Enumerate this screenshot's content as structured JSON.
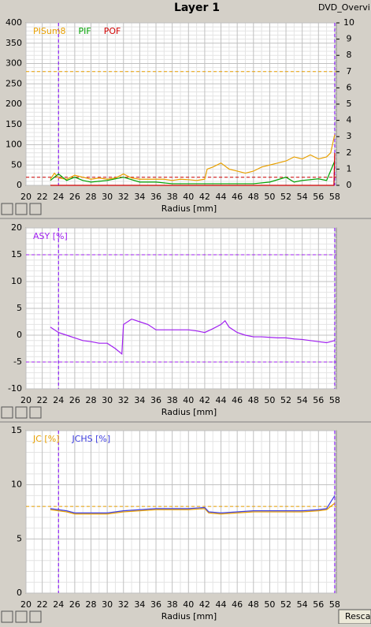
{
  "header": {
    "title": "Layer 1",
    "tab": "DVD_Overvi"
  },
  "button": "Rescal",
  "chart_data": [
    {
      "type": "line",
      "xlabel": "Radius [mm]",
      "xlim": [
        20,
        58.2
      ],
      "xticks": [
        20,
        22,
        24,
        26,
        28,
        30,
        32,
        34,
        36,
        38,
        40,
        42,
        44,
        46,
        48,
        50,
        52,
        54,
        56,
        58
      ],
      "ylim": [
        0,
        400
      ],
      "yticks": [
        0,
        50,
        100,
        150,
        200,
        250,
        300,
        350,
        400
      ],
      "y2lim": [
        0,
        10
      ],
      "y2ticks": [
        0,
        1,
        2,
        3,
        4,
        5,
        6,
        7,
        8,
        9,
        10
      ],
      "grid": true,
      "hlines": [
        {
          "value": 280,
          "color": "#e8a000"
        },
        {
          "value": 20,
          "color": "#d00000"
        }
      ],
      "vlines": [
        24,
        58
      ],
      "vline_color": "#8000ff",
      "series": [
        {
          "name": "PISum8",
          "color": "#e8a000",
          "x": [
            23,
            23.5,
            24,
            25,
            26,
            27,
            28,
            29,
            30,
            31,
            32,
            33,
            34,
            35,
            36,
            37,
            38,
            39,
            40,
            41,
            42,
            42.3,
            43,
            44,
            45,
            46,
            47,
            48,
            49,
            50,
            51,
            52,
            53,
            54,
            55,
            56,
            57,
            57.5,
            58
          ],
          "values": [
            15,
            30,
            18,
            15,
            25,
            20,
            15,
            18,
            15,
            18,
            28,
            18,
            15,
            15,
            15,
            15,
            12,
            15,
            14,
            12,
            15,
            40,
            45,
            55,
            40,
            35,
            30,
            35,
            45,
            50,
            55,
            60,
            70,
            65,
            75,
            65,
            70,
            80,
            125
          ]
        },
        {
          "name": "PIF",
          "color": "#00a000",
          "axis": "y2",
          "x": [
            23,
            24,
            25,
            26,
            27,
            28,
            30,
            32,
            34,
            36,
            38,
            40,
            42,
            44,
            46,
            48,
            50,
            52,
            53,
            54,
            56,
            57,
            58
          ],
          "values": [
            0.3,
            0.7,
            0.3,
            0.5,
            0.3,
            0.2,
            0.3,
            0.5,
            0.2,
            0.2,
            0.1,
            0.1,
            0.1,
            0.1,
            0.1,
            0.1,
            0.2,
            0.5,
            0.2,
            0.3,
            0.4,
            0.3,
            1.5
          ]
        },
        {
          "name": "POF",
          "color": "#d00000",
          "axis": "y2",
          "x": [
            23,
            40,
            57.9,
            58
          ],
          "values": [
            0,
            0,
            0,
            2
          ]
        }
      ]
    },
    {
      "type": "line",
      "xlabel": "Radius [mm]",
      "xlim": [
        20,
        58.2
      ],
      "xticks": [
        20,
        22,
        24,
        26,
        28,
        30,
        32,
        34,
        36,
        38,
        40,
        42,
        44,
        46,
        48,
        50,
        52,
        54,
        56,
        58
      ],
      "ylim": [
        -10,
        20
      ],
      "yticks": [
        -10,
        -5,
        0,
        5,
        10,
        15,
        20
      ],
      "grid": true,
      "hlines": [
        {
          "value": 15,
          "color": "#a020f0"
        },
        {
          "value": -5,
          "color": "#a020f0"
        }
      ],
      "vlines": [
        24,
        58
      ],
      "vline_color": "#8000ff",
      "series": [
        {
          "name": "ASY [%]",
          "color": "#a020f0",
          "x": [
            23,
            24,
            25,
            26,
            27,
            28,
            29,
            30,
            31,
            31.8,
            32,
            33,
            34,
            35,
            36,
            37,
            38,
            39,
            40,
            41,
            42,
            43,
            44,
            44.5,
            45,
            46,
            47,
            48,
            49,
            50,
            51,
            52,
            53,
            54,
            55,
            56,
            57,
            58
          ],
          "values": [
            1.5,
            0.5,
            0,
            -0.5,
            -1,
            -1.2,
            -1.5,
            -1.5,
            -2.5,
            -3.5,
            2,
            3,
            2.5,
            2,
            1,
            1,
            1,
            1,
            1,
            0.8,
            0.5,
            1.2,
            2,
            2.7,
            1.5,
            0.5,
            0,
            -0.3,
            -0.3,
            -0.4,
            -0.5,
            -0.5,
            -0.7,
            -0.8,
            -1,
            -1.2,
            -1.4,
            -1
          ]
        }
      ]
    },
    {
      "type": "line",
      "xlabel": "Radius [mm]",
      "xlim": [
        20,
        58.2
      ],
      "xticks": [
        20,
        22,
        24,
        26,
        28,
        30,
        32,
        34,
        36,
        38,
        40,
        42,
        44,
        46,
        48,
        50,
        52,
        54,
        56,
        58
      ],
      "ylim": [
        0,
        15
      ],
      "yticks": [
        0,
        5,
        10,
        15
      ],
      "grid": true,
      "hlines": [
        {
          "value": 8,
          "color": "#e8a000"
        }
      ],
      "vlines": [
        24,
        58
      ],
      "vline_color": "#8000ff",
      "series": [
        {
          "name": "JC [%]",
          "color": "#e8a000",
          "x": [
            23,
            24,
            25,
            26,
            28,
            30,
            32,
            34,
            36,
            38,
            40,
            42,
            42.5,
            44,
            46,
            48,
            50,
            52,
            54,
            56,
            57,
            58
          ],
          "values": [
            7.7,
            7.6,
            7.5,
            7.3,
            7.3,
            7.3,
            7.5,
            7.6,
            7.7,
            7.7,
            7.7,
            7.8,
            7.4,
            7.3,
            7.4,
            7.5,
            7.5,
            7.5,
            7.5,
            7.6,
            7.7,
            8.3
          ]
        },
        {
          "name": "JCHS [%]",
          "color": "#4040e0",
          "x": [
            23,
            24,
            25,
            26,
            28,
            30,
            32,
            34,
            36,
            38,
            40,
            42,
            42.5,
            44,
            46,
            48,
            50,
            52,
            54,
            56,
            57,
            58
          ],
          "values": [
            7.8,
            7.7,
            7.6,
            7.4,
            7.4,
            7.4,
            7.6,
            7.7,
            7.8,
            7.8,
            7.8,
            7.9,
            7.5,
            7.4,
            7.5,
            7.6,
            7.6,
            7.6,
            7.6,
            7.7,
            7.8,
            9
          ]
        }
      ]
    }
  ]
}
